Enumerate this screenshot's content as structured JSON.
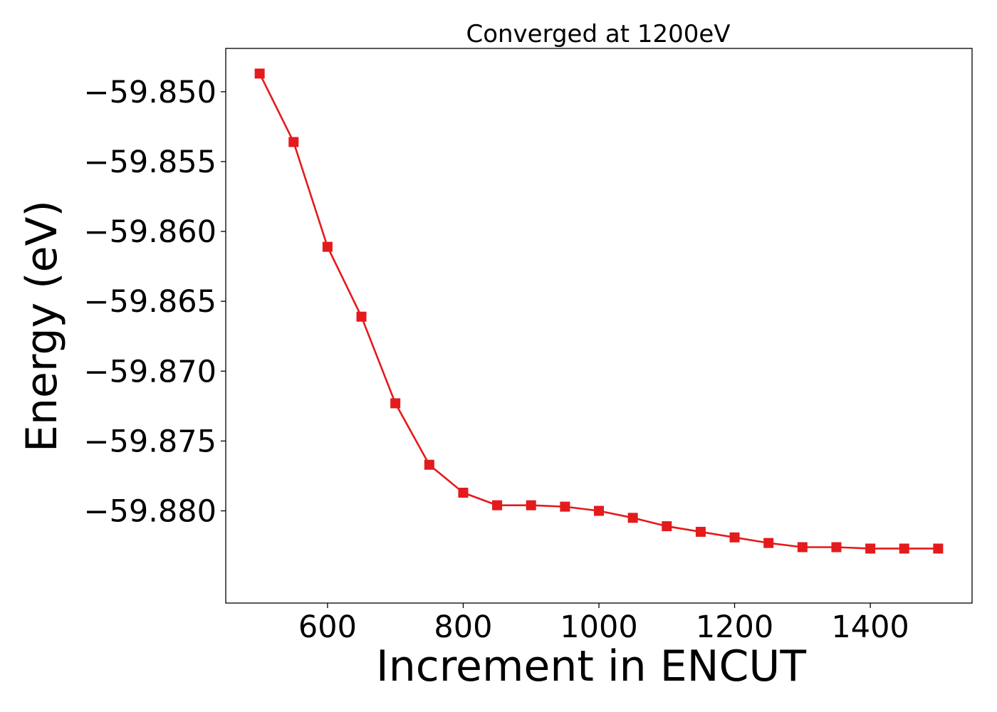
{
  "chart_data": {
    "type": "line",
    "title": "Converged at 1200eV",
    "xlabel": "Increment in ENCUT",
    "ylabel": "Energy (eV)",
    "xlim": [
      450,
      1550
    ],
    "ylim": [
      -59.8866,
      -59.8469
    ],
    "x_ticks": [
      600,
      800,
      1000,
      1200,
      1400
    ],
    "x_tick_labels": [
      "600",
      "800",
      "1000",
      "1200",
      "1400"
    ],
    "y_ticks": [
      -59.85,
      -59.855,
      -59.86,
      -59.865,
      -59.87,
      -59.875,
      -59.88
    ],
    "y_tick_labels": [
      "−59.850",
      "−59.855",
      "−59.860",
      "−59.865",
      "−59.870",
      "−59.875",
      "−59.880"
    ],
    "grid": false,
    "marker": "square",
    "color": "#e41a1c",
    "series": [
      {
        "x": [
          500,
          550,
          600,
          650,
          700,
          750,
          800,
          850,
          900,
          950,
          1000,
          1050,
          1100,
          1150,
          1200,
          1250,
          1300,
          1350,
          1400,
          1450,
          1500
        ],
        "y": [
          -59.8487,
          -59.8536,
          -59.8611,
          -59.8661,
          -59.8723,
          -59.8767,
          -59.8787,
          -59.8796,
          -59.8796,
          -59.8797,
          -59.88,
          -59.8805,
          -59.8811,
          -59.8815,
          -59.8819,
          -59.8823,
          -59.8826,
          -59.8826,
          -59.8827,
          -59.8827,
          -59.8827
        ]
      }
    ]
  }
}
